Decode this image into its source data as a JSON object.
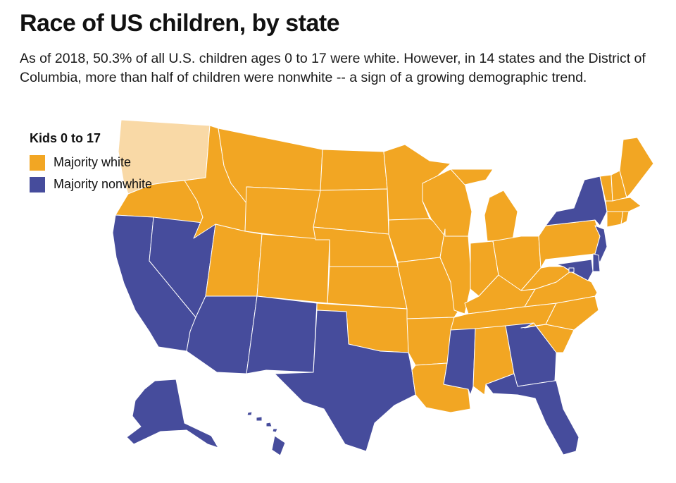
{
  "title": "Race of US children, by state",
  "subtitle": "As of 2018, 50.3% of all U.S. children ages 0 to 17 were white. However, in 14 states and the District of Columbia, more than half of children were nonwhite -- a sign of a growing demographic trend.",
  "legend": {
    "title": "Kids 0 to 17",
    "items": [
      {
        "label": "Majority white",
        "color": "#F2A623"
      },
      {
        "label": "Majority nonwhite",
        "color": "#464C9C"
      }
    ]
  },
  "colors": {
    "white": "#F2A623",
    "nonwhite": "#464C9C",
    "highlight": "#F9D9A6",
    "border": "#ffffff"
  },
  "states": [
    {
      "id": "WA",
      "category": "highlight"
    },
    {
      "id": "OR",
      "category": "white"
    },
    {
      "id": "CA",
      "category": "nonwhite"
    },
    {
      "id": "NV",
      "category": "nonwhite"
    },
    {
      "id": "ID",
      "category": "white"
    },
    {
      "id": "MT",
      "category": "white"
    },
    {
      "id": "WY",
      "category": "white"
    },
    {
      "id": "UT",
      "category": "white"
    },
    {
      "id": "CO",
      "category": "white"
    },
    {
      "id": "AZ",
      "category": "nonwhite"
    },
    {
      "id": "NM",
      "category": "nonwhite"
    },
    {
      "id": "ND",
      "category": "white"
    },
    {
      "id": "SD",
      "category": "white"
    },
    {
      "id": "NE",
      "category": "white"
    },
    {
      "id": "KS",
      "category": "white"
    },
    {
      "id": "OK",
      "category": "white"
    },
    {
      "id": "TX",
      "category": "nonwhite"
    },
    {
      "id": "MN",
      "category": "white"
    },
    {
      "id": "IA",
      "category": "white"
    },
    {
      "id": "MO",
      "category": "white"
    },
    {
      "id": "AR",
      "category": "white"
    },
    {
      "id": "LA",
      "category": "white"
    },
    {
      "id": "WI",
      "category": "white"
    },
    {
      "id": "IL",
      "category": "white"
    },
    {
      "id": "MI",
      "category": "white"
    },
    {
      "id": "IN",
      "category": "white"
    },
    {
      "id": "OH",
      "category": "white"
    },
    {
      "id": "KY",
      "category": "white"
    },
    {
      "id": "TN",
      "category": "white"
    },
    {
      "id": "MS",
      "category": "nonwhite"
    },
    {
      "id": "AL",
      "category": "white"
    },
    {
      "id": "GA",
      "category": "nonwhite"
    },
    {
      "id": "FL",
      "category": "nonwhite"
    },
    {
      "id": "SC",
      "category": "white"
    },
    {
      "id": "NC",
      "category": "white"
    },
    {
      "id": "VA",
      "category": "white"
    },
    {
      "id": "WV",
      "category": "white"
    },
    {
      "id": "PA",
      "category": "white"
    },
    {
      "id": "NY",
      "category": "nonwhite"
    },
    {
      "id": "NJ",
      "category": "nonwhite"
    },
    {
      "id": "DE",
      "category": "nonwhite"
    },
    {
      "id": "MD",
      "category": "nonwhite"
    },
    {
      "id": "DC",
      "category": "nonwhite"
    },
    {
      "id": "CT",
      "category": "white"
    },
    {
      "id": "RI",
      "category": "white"
    },
    {
      "id": "MA",
      "category": "white"
    },
    {
      "id": "VT",
      "category": "white"
    },
    {
      "id": "NH",
      "category": "white"
    },
    {
      "id": "ME",
      "category": "white"
    },
    {
      "id": "AK",
      "category": "nonwhite"
    },
    {
      "id": "HI",
      "category": "nonwhite"
    }
  ]
}
